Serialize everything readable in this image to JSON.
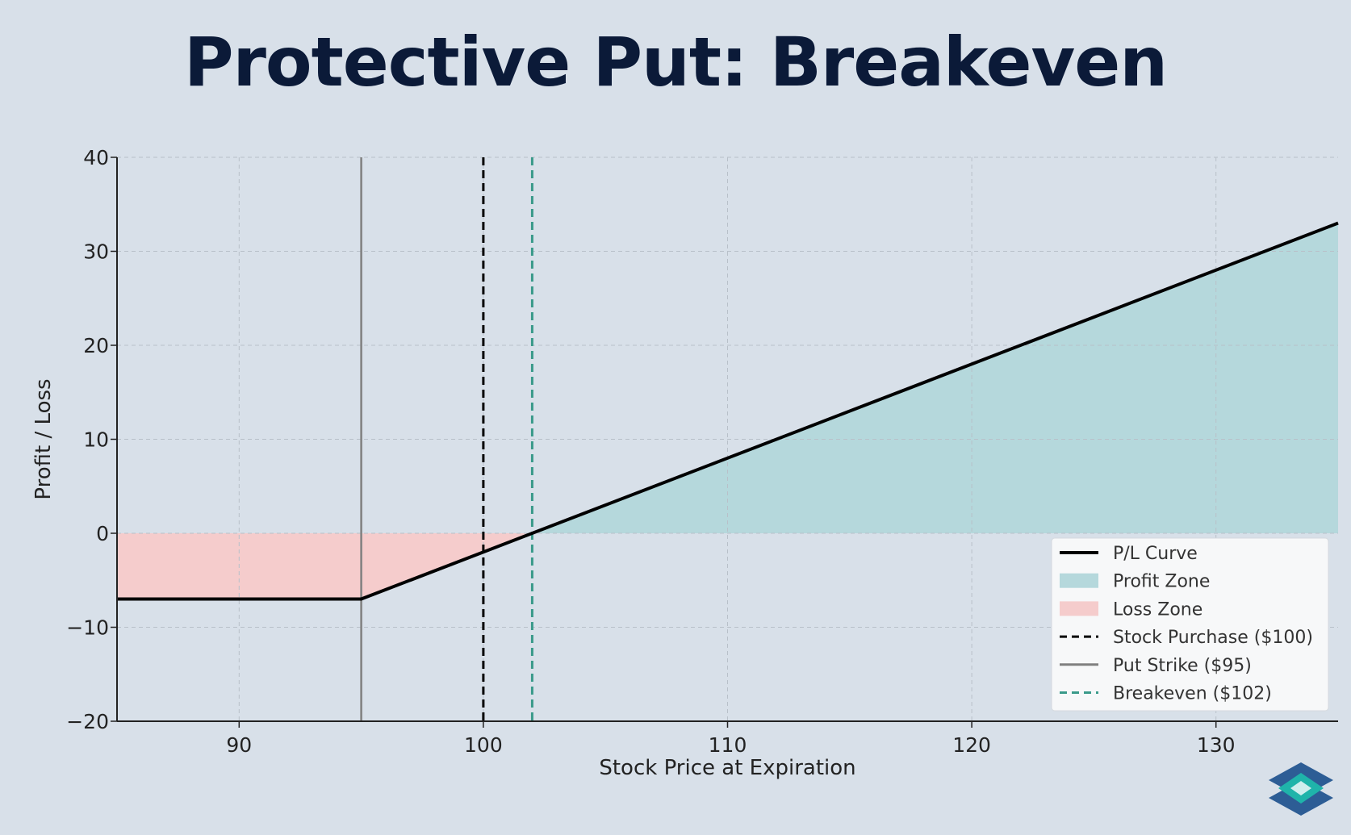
{
  "title": "Protective Put: Breakeven",
  "chart_data": {
    "type": "line",
    "xlabel": "Stock Price at Expiration",
    "ylabel": "Profit / Loss",
    "xlim": [
      85,
      135
    ],
    "ylim": [
      -20,
      40
    ],
    "xticks": [
      90,
      100,
      110,
      120,
      130
    ],
    "yticks": [
      -20,
      -10,
      0,
      10,
      20,
      30,
      40
    ],
    "ytick_labels": [
      "−20",
      "−10",
      "0",
      "10",
      "20",
      "30",
      "40"
    ],
    "grid": true,
    "legend_position": "lower right",
    "series": [
      {
        "name": "P/L Curve",
        "kind": "line",
        "color": "#000000",
        "x": [
          85,
          95,
          135
        ],
        "y": [
          -7,
          -7,
          33
        ]
      },
      {
        "name": "Profit Zone",
        "kind": "fill",
        "color": "#b5d8dc"
      },
      {
        "name": "Loss Zone",
        "kind": "fill",
        "color": "#f5cccc"
      },
      {
        "name": "Stock Purchase ($100)",
        "kind": "vline",
        "x": 100,
        "style": "dashed",
        "color": "#000000"
      },
      {
        "name": "Put Strike ($95)",
        "kind": "vline",
        "x": 95,
        "style": "solid",
        "color": "#808080"
      },
      {
        "name": "Breakeven ($102)",
        "kind": "vline",
        "x": 102,
        "style": "dashed",
        "color": "#3a9a8a"
      }
    ]
  },
  "logo": {
    "colors": [
      "#2d5d95",
      "#1fb4aa",
      "#cfeeee"
    ]
  }
}
